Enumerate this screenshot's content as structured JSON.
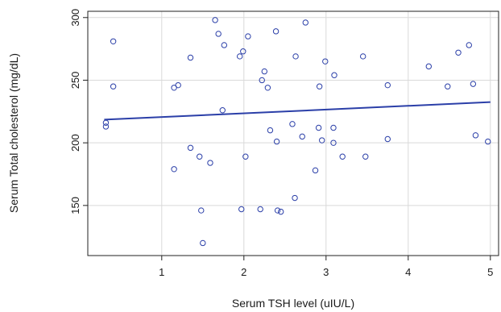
{
  "chart_data": {
    "type": "scatter",
    "xlabel": "Serum TSH level (uIU/L)",
    "ylabel": "Serum Total cholesterol (mg/dL)",
    "xlim": [
      0.1,
      5.1
    ],
    "ylim": [
      110,
      305
    ],
    "xticks": [
      1,
      2,
      3,
      4,
      5
    ],
    "yticks": [
      150,
      200,
      250,
      300
    ],
    "grid": true,
    "colors": {
      "points": "#2b3fa8",
      "line": "#2b3fa8",
      "grid": "#d9d9d9",
      "frame": "#222222"
    },
    "series": [
      {
        "points": [
          [
            0.32,
            213
          ],
          [
            0.32,
            216
          ],
          [
            0.41,
            245
          ],
          [
            0.41,
            281
          ],
          [
            1.15,
            179
          ],
          [
            1.15,
            244
          ],
          [
            1.2,
            246
          ],
          [
            1.35,
            196
          ],
          [
            1.35,
            268
          ],
          [
            1.46,
            189
          ],
          [
            1.48,
            146
          ],
          [
            1.5,
            120
          ],
          [
            1.59,
            184
          ],
          [
            1.65,
            298
          ],
          [
            1.69,
            287
          ],
          [
            1.74,
            226
          ],
          [
            1.76,
            278
          ],
          [
            1.95,
            269
          ],
          [
            1.97,
            147
          ],
          [
            1.99,
            273
          ],
          [
            2.02,
            189
          ],
          [
            2.05,
            285
          ],
          [
            2.2,
            147
          ],
          [
            2.22,
            250
          ],
          [
            2.25,
            257
          ],
          [
            2.29,
            244
          ],
          [
            2.32,
            210
          ],
          [
            2.39,
            289
          ],
          [
            2.4,
            201
          ],
          [
            2.41,
            146
          ],
          [
            2.45,
            145
          ],
          [
            2.59,
            215
          ],
          [
            2.62,
            156
          ],
          [
            2.63,
            269
          ],
          [
            2.71,
            205
          ],
          [
            2.75,
            296
          ],
          [
            2.87,
            178
          ],
          [
            2.91,
            212
          ],
          [
            2.92,
            245
          ],
          [
            2.95,
            202
          ],
          [
            2.99,
            265
          ],
          [
            3.09,
            212
          ],
          [
            3.09,
            200
          ],
          [
            3.1,
            254
          ],
          [
            3.2,
            189
          ],
          [
            3.45,
            269
          ],
          [
            3.48,
            189
          ],
          [
            3.75,
            246
          ],
          [
            3.75,
            203
          ],
          [
            4.25,
            261
          ],
          [
            4.48,
            245
          ],
          [
            4.61,
            272
          ],
          [
            4.74,
            278
          ],
          [
            4.79,
            247
          ],
          [
            4.82,
            206
          ],
          [
            4.97,
            201
          ]
        ]
      }
    ],
    "trendline": {
      "x": [
        0.3,
        5.0
      ],
      "y": [
        218.5,
        232.5
      ]
    }
  }
}
